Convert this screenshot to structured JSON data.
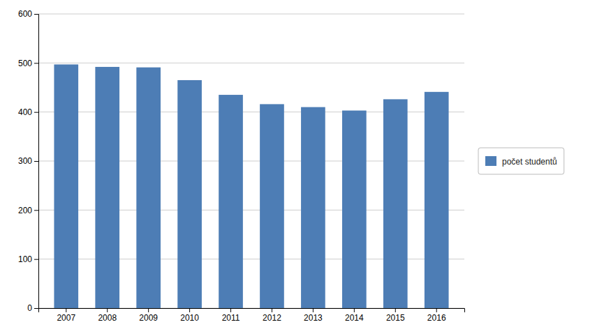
{
  "chart_data": {
    "type": "bar",
    "categories": [
      "2007",
      "2008",
      "2009",
      "2010",
      "2011",
      "2012",
      "2013",
      "2014",
      "2015",
      "2016"
    ],
    "series": [
      {
        "name": "počet studentů",
        "color": "#4d7db5",
        "values": [
          497,
          492,
          491,
          465,
          435,
          416,
          410,
          403,
          426,
          441
        ]
      }
    ],
    "ylim": [
      0,
      600
    ],
    "yticks": [
      0,
      100,
      200,
      300,
      400,
      500,
      600
    ],
    "grid": true,
    "legend": "right"
  }
}
